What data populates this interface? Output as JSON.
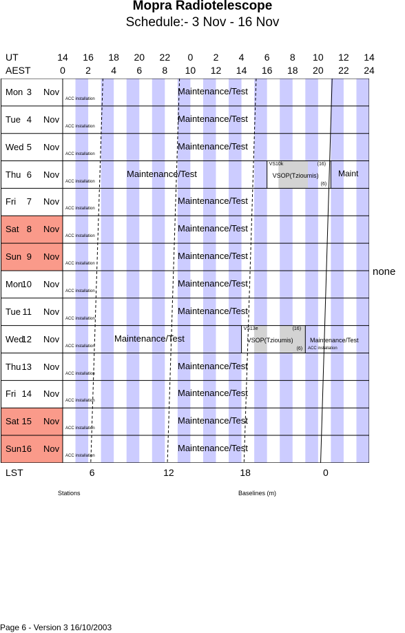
{
  "title": "Mopra Radiotelescope",
  "subtitle": "Schedule:- 3  Nov - 16 Nov",
  "axis": {
    "ut_label": "UT",
    "aest_label": "AEST",
    "ut_ticks": [
      "14",
      "16",
      "18",
      "20",
      "22",
      "0",
      "2",
      "4",
      "6",
      "8",
      "10",
      "12",
      "14"
    ],
    "aest_ticks": [
      "0",
      "2",
      "4",
      "6",
      "8",
      "10",
      "12",
      "14",
      "16",
      "18",
      "20",
      "22",
      "24"
    ],
    "lst_label": "LST",
    "lst_ticks": [
      "6",
      "12",
      "18",
      "0"
    ]
  },
  "days": [
    {
      "name": "Mon",
      "date": "3",
      "month": "Nov",
      "weekend": false,
      "acc": "ACC installation",
      "maint": "Maintenance/Test"
    },
    {
      "name": "Tue",
      "date": "4",
      "month": "Nov",
      "weekend": false,
      "acc": "ACC installation",
      "maint": "Maintenance/Test"
    },
    {
      "name": "Wed",
      "date": "5",
      "month": "Nov",
      "weekend": false,
      "acc": "ACC installation",
      "maint": "Maintenance/Test"
    },
    {
      "name": "Thu",
      "date": "6",
      "month": "Nov",
      "weekend": false,
      "acc": "ACC installation",
      "maint": "Maintenance/Test",
      "vsop_code": "VS10k",
      "vsop_top": "(16)",
      "vsop_name": "VSOP(Tzioumis)",
      "vsop_bottom": "(6)",
      "maint2": "Maint"
    },
    {
      "name": "Fri",
      "date": "7",
      "month": "Nov",
      "weekend": false,
      "acc": "ACC installation",
      "maint": "Maintenance/Test"
    },
    {
      "name": "Sat",
      "date": "8",
      "month": "Nov",
      "weekend": true,
      "acc": "ACC installation",
      "maint": "Maintenance/Test"
    },
    {
      "name": "Sun",
      "date": "9",
      "month": "Nov",
      "weekend": true,
      "acc": "ACC installation",
      "maint": "Maintenance/Test"
    },
    {
      "name": "Mon",
      "date": "10",
      "month": "Nov",
      "weekend": false,
      "acc": "ACC installation",
      "maint": "Maintenance/Test"
    },
    {
      "name": "Tue",
      "date": "11",
      "month": "Nov",
      "weekend": false,
      "acc": "ACC installation",
      "maint": "Maintenance/Test"
    },
    {
      "name": "Wed",
      "date": "12",
      "month": "Nov",
      "weekend": false,
      "acc": "ACC installation",
      "maint": "Maintenance/Test",
      "vsop_code": "VS13e",
      "vsop_top": "(16)",
      "vsop_name": "VSOP(Tzioumis)",
      "vsop_bottom": "(6)",
      "maint2": "Maintenance/Test",
      "acc2": "ACC installation"
    },
    {
      "name": "Thu",
      "date": "13",
      "month": "Nov",
      "weekend": false,
      "acc": "ACC installation",
      "maint": "Maintenance/Test"
    },
    {
      "name": "Fri",
      "date": "14",
      "month": "Nov",
      "weekend": false,
      "acc": "ACC installation",
      "maint": "Maintenance/Test"
    },
    {
      "name": "Sat",
      "date": "15",
      "month": "Nov",
      "weekend": true,
      "acc": "ACC installation",
      "maint": "Maintenance/Test"
    },
    {
      "name": "Sun",
      "date": "16",
      "month": "Nov",
      "weekend": true,
      "acc": "ACC installation",
      "maint": "Maintenance/Test"
    }
  ],
  "right_column": "none",
  "legend": {
    "stations": "Stations",
    "baselines": "Baselines (m)"
  },
  "footer": "Page 6 - Version 3  16/10/2003",
  "colors": {
    "stripe": "#ccccff",
    "weekend": "#fa9a8a",
    "vsop": "#d3d3d3"
  }
}
